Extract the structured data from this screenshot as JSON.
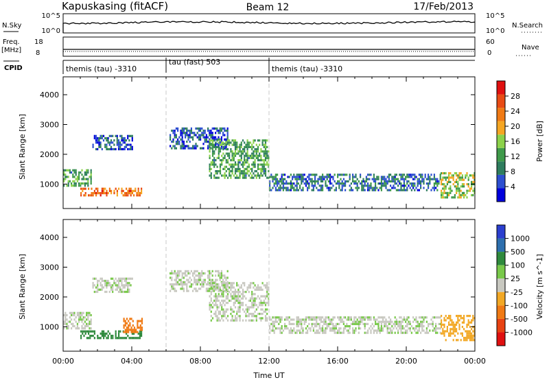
{
  "header": {
    "station": "Kapuskasing (fitACF)",
    "beam": "Beam 12",
    "date": "17/Feb/2013"
  },
  "noise_panel": {
    "left_label": "N.Sky",
    "left_ticks": [
      "10^5",
      "10^0"
    ],
    "right_ticks": [
      "10^5",
      "10^0"
    ],
    "right_label": "N.Search"
  },
  "freq_panel": {
    "left_label_1": "Freq.",
    "left_label_2": "[MHz]",
    "left_ticks": [
      "18",
      "8"
    ],
    "right_ticks": [
      "60",
      "0"
    ],
    "right_label": "Nave"
  },
  "cpid": {
    "label": "CPID",
    "segments": [
      {
        "text": "themis (tau) -3310",
        "start_h": 0,
        "end_h": 6
      },
      {
        "text": "tau (fast) 503",
        "start_h": 6,
        "end_h": 12
      },
      {
        "text": "themis (tau) -3310",
        "start_h": 12,
        "end_h": 24
      }
    ]
  },
  "colors": {
    "power": [
      "#0000dc",
      "#2d4fd0",
      "#2e7d5e",
      "#3f9a4a",
      "#8cd24a",
      "#f5a623",
      "#f07a14",
      "#e84b14",
      "#e01010"
    ],
    "velocity": [
      "#2b3fcf",
      "#2d6fae",
      "#2f8a3d",
      "#79c94a",
      "#c8c8c0",
      "#f2a825",
      "#f07a14",
      "#e84212",
      "#e01010"
    ]
  },
  "chart_data": [
    {
      "type": "heatmap",
      "name": "Power",
      "ylabel": "Slant Range [km]",
      "xlabel": "",
      "ylim": [
        180,
        4600
      ],
      "xlim_hours": [
        0,
        24
      ],
      "y_ticks": [
        1000,
        2000,
        3000,
        4000
      ],
      "colorbar_label": "Power [dB]",
      "colorbar_ticks": [
        "28",
        "24",
        "20",
        "16",
        "12",
        "8",
        "4"
      ],
      "colorbar_range": [
        0,
        32
      ],
      "echo_bands": [
        {
          "t0": 0,
          "t1": 1.6,
          "r0": 950,
          "r1": 1500,
          "value": 12
        },
        {
          "t0": 1.0,
          "t1": 4.6,
          "r0": 620,
          "r1": 880,
          "value": 24
        },
        {
          "t0": 1.7,
          "t1": 4.0,
          "r0": 2150,
          "r1": 2650,
          "value": 6
        },
        {
          "t0": 6.2,
          "t1": 9.6,
          "r0": 2200,
          "r1": 2900,
          "value": 6
        },
        {
          "t0": 8.5,
          "t1": 12.0,
          "r0": 1200,
          "r1": 2500,
          "value": 12
        },
        {
          "t0": 12.0,
          "t1": 22.0,
          "r0": 780,
          "r1": 1350,
          "value": 8
        },
        {
          "t0": 22.0,
          "t1": 24.0,
          "r0": 550,
          "r1": 1400,
          "value": 16
        }
      ]
    },
    {
      "type": "heatmap",
      "name": "Velocity",
      "ylabel": "Slant Range [km]",
      "xlabel": "Time UT",
      "ylim": [
        180,
        4600
      ],
      "xlim_hours": [
        0,
        24
      ],
      "x_ticks": [
        "00:00",
        "04:00",
        "08:00",
        "12:00",
        "16:00",
        "20:00",
        "00:00"
      ],
      "y_ticks": [
        1000,
        2000,
        3000,
        4000
      ],
      "colorbar_label": "Velocity [m s^-1]",
      "colorbar_ticks": [
        "1000",
        "500",
        "100",
        "25",
        "-25",
        "-100",
        "-500",
        "-1000"
      ],
      "echo_bands": [
        {
          "t0": 0,
          "t1": 1.6,
          "r0": 950,
          "r1": 1500,
          "value": 0
        },
        {
          "t0": 1.0,
          "t1": 4.6,
          "r0": 620,
          "r1": 880,
          "value": 50
        },
        {
          "t0": 3.5,
          "t1": 4.6,
          "r0": 800,
          "r1": 1300,
          "value": -200
        },
        {
          "t0": 1.7,
          "t1": 4.0,
          "r0": 2150,
          "r1": 2650,
          "value": 0
        },
        {
          "t0": 6.2,
          "t1": 9.6,
          "r0": 2200,
          "r1": 2900,
          "value": 0
        },
        {
          "t0": 8.5,
          "t1": 12.0,
          "r0": 1200,
          "r1": 2500,
          "value": 0
        },
        {
          "t0": 12.0,
          "t1": 22.0,
          "r0": 780,
          "r1": 1350,
          "value": 0
        },
        {
          "t0": 22.0,
          "t1": 24.0,
          "r0": 550,
          "r1": 1400,
          "value": -50
        }
      ]
    }
  ]
}
